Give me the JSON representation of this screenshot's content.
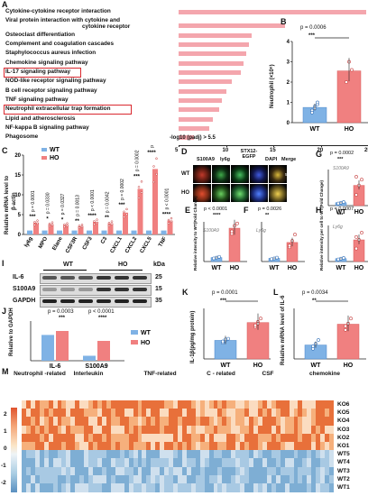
{
  "panels": {
    "A": "A",
    "B": "B",
    "C": "C",
    "D": "D",
    "E": "E",
    "F": "F",
    "G": "G",
    "H": "H",
    "I": "I",
    "J": "J",
    "K": "K",
    "L": "L",
    "M": "M"
  },
  "panelA": {
    "pathways": [
      {
        "name": "Cytokine-cytokine receptor interaction",
        "value": 24.8
      },
      {
        "name": "Viral protein interaction with cytokine and",
        "name2": "cytokine receptor",
        "value": 16.2
      },
      {
        "name": "Osteoclast differentiation",
        "value": 12.7
      },
      {
        "name": "Complement and coagulation cascades",
        "value": 12.4
      },
      {
        "name": "Staphylococcus aureus infection",
        "value": 12.1
      },
      {
        "name": "Chemokine signaling pathway",
        "value": 11.9
      },
      {
        "name": "IL-17 signaling pathway",
        "value": 11.6
      },
      {
        "name": "NOD-like receptor signaling pathway",
        "value": 10.6
      },
      {
        "name": "B cell receptor signaling pathway",
        "value": 10.0
      },
      {
        "name": "TNF signaling pathway",
        "value": 9.6
      },
      {
        "name": "Neutrophil extracellular trap formation",
        "value": 9.3
      },
      {
        "name": "Lipid and atherosclerosis",
        "value": 8.6
      },
      {
        "name": "NF-kappa B signaling pathway",
        "value": 8.2
      },
      {
        "name": "Phagosome",
        "value": 6.6
      }
    ],
    "axis_note": "-log10 (padj) > 5.5",
    "ticks": [
      "5",
      "10",
      "15",
      "20",
      "25"
    ]
  },
  "panelB": {
    "p": "p = 0.0006",
    "stars": "***",
    "ylabel": "Neutrophil (×10⁶)",
    "groups": [
      "WT",
      "HO"
    ],
    "yticks": [
      "0",
      "1",
      "2",
      "3",
      "4"
    ]
  },
  "panelC": {
    "ylabel": "Relative mRNA level to",
    "ylabel2": "β-actin",
    "legend": [
      "WT",
      "HO"
    ],
    "genes": [
      "ly6g",
      "MPO",
      "Elane",
      "CSF3R",
      "CSF3",
      "C3",
      "CXCL1",
      "CXCL2",
      "CXCL5",
      "TNF"
    ],
    "pvals": [
      "p = 0.0001",
      "p = 0.0330",
      "p = 0.0327",
      "p = 0.0013",
      "p < 0.0001",
      "p = 0.0042",
      "p = 0.0002",
      "p = 0.0002",
      "p < 0.0001",
      "p < 0.0001"
    ],
    "stars": [
      "***",
      "*",
      "*",
      "**",
      "****",
      "**",
      "***",
      "***",
      "****",
      "****"
    ],
    "yticks": [
      "0",
      "5",
      "10",
      "15",
      "20"
    ]
  },
  "panelD": {
    "cols": [
      "S100A9",
      "ly6g",
      "STX12-EGFP",
      "DAPI",
      "Merge"
    ],
    "rows": [
      "WT",
      "HO"
    ],
    "scale": "50 μm"
  },
  "panelE": {
    "p": "p < 0.0001",
    "stars": "****",
    "tag": "S100A9",
    "ylabel": "Relative intensity to WT(Fold Change)",
    "groups": [
      "WT",
      "HO"
    ]
  },
  "panelF": {
    "p": "p = 0.0026",
    "stars": "**",
    "tag": "Ly6g",
    "groups": [
      "WT",
      "HO"
    ]
  },
  "panelG": {
    "p": "p = 0.0002",
    "stars": "***",
    "tag": "S100A9",
    "groups": [
      "WT",
      "HO"
    ]
  },
  "panelH": {
    "p": "p = 0.0007",
    "stars": "***",
    "tag": "Ly6g",
    "groups": [
      "WT",
      "HO"
    ],
    "ylabel": "Relative intensity per cell to WT(Fold Change)"
  },
  "panelI": {
    "groups": [
      "WT",
      "HO"
    ],
    "kda": "kDa",
    "rows": [
      {
        "name": "IL-6",
        "kda": "25"
      },
      {
        "name": "S100A9",
        "kda": "15"
      },
      {
        "name": "GAPDH",
        "kda": "35"
      }
    ]
  },
  "panelJ": {
    "p1": "p = 0.0003",
    "s1": "***",
    "p2": "p < 0.0001",
    "s2": "****",
    "ylabel": "Relative to GAPDH",
    "categories": [
      "IL-6",
      "S100A9"
    ],
    "legend": [
      "WT",
      "HO"
    ]
  },
  "panelK": {
    "p": "p = 0.0001",
    "stars": "***",
    "ylabel": "IL-1β(pg/mg protein)",
    "groups": [
      "WT",
      "HO"
    ]
  },
  "panelL": {
    "p": "p = 0.0034",
    "stars": "**",
    "ylabel": "Relative mRNA level of IL-6",
    "groups": [
      "WT",
      "HO"
    ]
  },
  "panelM": {
    "groups": [
      "Neutrophil -related",
      "Interleukin",
      "TNF-related",
      "C - related",
      "CSF",
      "chemokine"
    ],
    "rows": [
      "KO6",
      "KO5",
      "KO4",
      "KO3",
      "KO2",
      "KO1",
      "WT5",
      "WT4",
      "WT3",
      "WT2",
      "WT1"
    ],
    "scale": [
      "2",
      "1",
      "0",
      "-1",
      "-2"
    ]
  },
  "colors": {
    "wt": "#7fb2e5",
    "ho": "#f08080",
    "bar": "#f4a6ad",
    "red_box": "#d9282f"
  },
  "chart_data": [
    {
      "type": "bar",
      "title": "",
      "categories": [
        "Cytokine-cytokine receptor interaction",
        "Viral protein interaction with cytokine and cytokine receptor",
        "Osteoclast differentiation",
        "Complement and coagulation cascades",
        "Staphylococcus aureus infection",
        "Chemokine signaling pathway",
        "IL-17 signaling pathway",
        "NOD-like receptor signaling pathway",
        "B cell receptor signaling pathway",
        "TNF signaling pathway",
        "Neutrophil extracellular trap formation",
        "Lipid and atherosclerosis",
        "NF-kappa B signaling pathway",
        "Phagosome"
      ],
      "values": [
        24.8,
        16.2,
        12.7,
        12.4,
        12.1,
        11.9,
        11.6,
        10.6,
        10.0,
        9.6,
        9.3,
        8.6,
        8.2,
        6.6
      ],
      "xlabel": "-log10 (padj) > 5.5",
      "xlim": [
        5,
        25
      ]
    },
    {
      "type": "bar",
      "categories": [
        "WT",
        "HO"
      ],
      "values": [
        0.75,
        2.55
      ],
      "ylabel": "Neutrophil (×10⁶)",
      "ylim": [
        0,
        4
      ]
    },
    {
      "type": "bar",
      "categories": [
        "ly6g",
        "MPO",
        "Elane",
        "CSF3R",
        "CSF3",
        "C3",
        "CXCL1",
        "CXCL2",
        "CXCL5",
        "TNF"
      ],
      "series": [
        {
          "name": "WT",
          "values": [
            1,
            1,
            1,
            1,
            1,
            1,
            1,
            1,
            1,
            1
          ]
        },
        {
          "name": "HO",
          "values": [
            3.0,
            2.6,
            2.4,
            2.1,
            3.2,
            2.8,
            5.5,
            11.5,
            16.5,
            3.5
          ]
        }
      ],
      "ylabel": "Relative mRNA level to β-actin",
      "ylim": [
        0,
        20
      ]
    },
    {
      "type": "bar",
      "categories": [
        "IL-6",
        "S100A9"
      ],
      "series": [
        {
          "name": "WT",
          "values": [
            1.3,
            0.25
          ]
        },
        {
          "name": "HO",
          "values": [
            1.5,
            1.0
          ]
        }
      ],
      "ylabel": "Relative to GAPDH",
      "ylim": [
        0,
        2
      ]
    },
    {
      "type": "bar",
      "categories": [
        "WT",
        "HO"
      ],
      "values": [
        55,
        108
      ],
      "ylabel": "IL-1β(pg/mg protein)",
      "ylim": [
        0,
        150
      ]
    },
    {
      "type": "bar",
      "categories": [
        "WT",
        "HO"
      ],
      "values": [
        1.1,
        2.75
      ],
      "ylabel": "Relative mRNA level of IL-6",
      "ylim": [
        0,
        4
      ]
    }
  ]
}
